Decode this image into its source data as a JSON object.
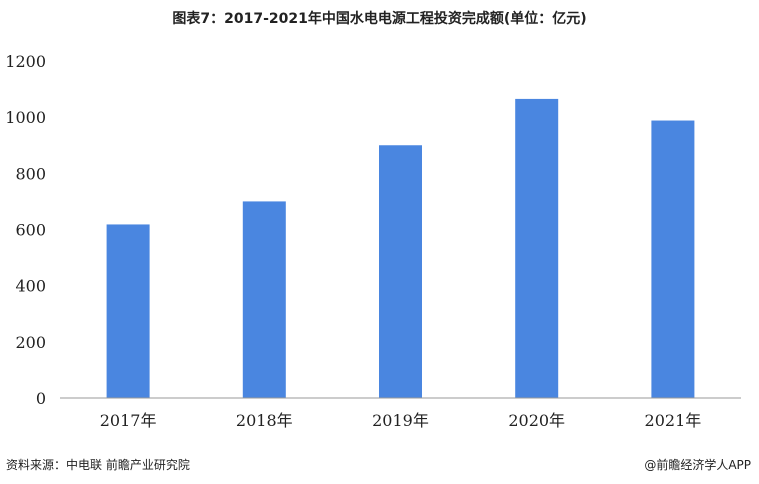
{
  "chart_data": {
    "type": "bar",
    "title": "图表7：2017-2021年中国水电电源工程投资完成额(单位：亿元)",
    "categories": [
      "2017年",
      "2018年",
      "2019年",
      "2020年",
      "2021年"
    ],
    "values": [
      618,
      700,
      900,
      1065,
      988
    ],
    "ylim": [
      0,
      1200
    ],
    "yticks": [
      "0",
      "200",
      "400",
      "600",
      "800",
      "1000",
      "1200"
    ],
    "xlabel": "",
    "ylabel": "",
    "grid": false,
    "bar_color": "#4a86e0",
    "axis_color": "#999999"
  },
  "footer": {
    "source": "资料来源：中电联 前瞻产业研究院",
    "brand": "@前瞻经济学人APP"
  }
}
